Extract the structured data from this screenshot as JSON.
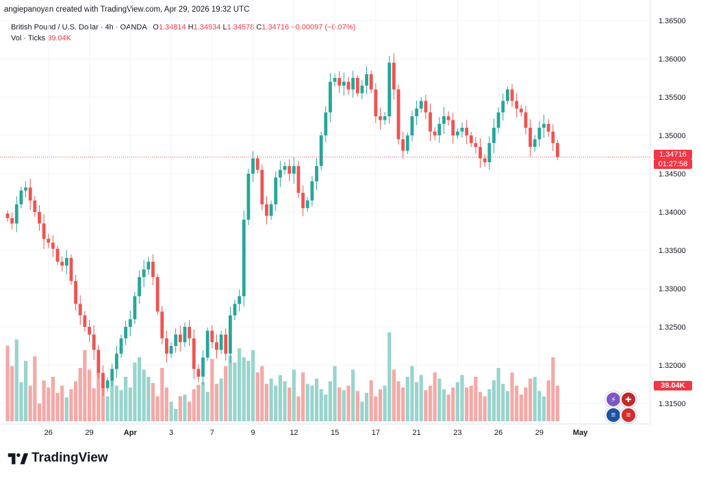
{
  "header": {
    "author_line": "angiepanoyan created with TradingView.com, Apr 29, 2026 19:32 UTC",
    "symbol": "British Pound / U.S. Dollar · 4h · OANDA",
    "open_label": "O",
    "open": "1.34814",
    "high_label": "H",
    "high": "1.34934",
    "low_label": "L",
    "low": "1.34578",
    "close_label": "C",
    "close": "1.34716",
    "change": "−0.00097 (−0.07%)",
    "vol_label": "Vol · Ticks",
    "vol_value": "39.04K"
  },
  "price_scale": {
    "last_price": "1.34716",
    "countdown": "01:27:58",
    "volume_tag": "39.04K"
  },
  "brand": {
    "name": "TradingView"
  },
  "colors": {
    "up": "#26a69a",
    "down": "#ef5350",
    "vol_up": "#98d4cc",
    "vol_down": "#f4a9a7",
    "grid": "#f0f3fa",
    "last_price_line": "#f23645"
  },
  "event_icons": [
    "lightning-icon",
    "uk-flag-icon",
    "us-flag-icon",
    "us-flag-icon"
  ],
  "chart_data": {
    "type": "candlestick",
    "timeframe": "4h",
    "ylim": [
      1.311,
      1.366
    ],
    "y_ticks": [
      "1.31500",
      "1.32000",
      "1.32500",
      "1.33000",
      "1.33500",
      "1.34000",
      "1.34500",
      "1.35000",
      "1.35500",
      "1.36000",
      "1.36500"
    ],
    "x_ticks": [
      {
        "label": "26",
        "index": 9
      },
      {
        "label": "29",
        "index": 18
      },
      {
        "label": "Apr",
        "index": 27
      },
      {
        "label": "3",
        "index": 36
      },
      {
        "label": "7",
        "index": 45
      },
      {
        "label": "9",
        "index": 54
      },
      {
        "label": "12",
        "index": 63
      },
      {
        "label": "15",
        "index": 72
      },
      {
        "label": "17",
        "index": 81
      },
      {
        "label": "21",
        "index": 90
      },
      {
        "label": "23",
        "index": 99
      },
      {
        "label": "26",
        "index": 108
      },
      {
        "label": "29",
        "index": 117
      },
      {
        "label": "May",
        "index": 126
      }
    ],
    "closes": [
      1.3392,
      1.3385,
      1.341,
      1.3428,
      1.3432,
      1.3415,
      1.34,
      1.3385,
      1.3365,
      1.336,
      1.3352,
      1.3335,
      1.333,
      1.334,
      1.331,
      1.328,
      1.3265,
      1.325,
      1.324,
      1.322,
      1.319,
      1.317,
      1.318,
      1.3195,
      1.3215,
      1.3235,
      1.325,
      1.326,
      1.329,
      1.3315,
      1.3325,
      1.3335,
      1.3315,
      1.327,
      1.3235,
      1.3215,
      1.3225,
      1.324,
      1.323,
      1.325,
      1.3235,
      1.3195,
      1.3185,
      1.321,
      1.3245,
      1.323,
      1.322,
      1.324,
      1.3215,
      1.3265,
      1.328,
      1.329,
      1.339,
      1.345,
      1.347,
      1.3455,
      1.341,
      1.3395,
      1.341,
      1.3445,
      1.3455,
      1.346,
      1.345,
      1.346,
      1.3425,
      1.3405,
      1.3415,
      1.344,
      1.346,
      1.35,
      1.353,
      1.357,
      1.3575,
      1.3565,
      1.357,
      1.356,
      1.3575,
      1.3555,
      1.3565,
      1.358,
      1.356,
      1.3525,
      1.352,
      1.3525,
      1.3595,
      1.356,
      1.3495,
      1.348,
      1.35,
      1.3525,
      1.3535,
      1.3545,
      1.353,
      1.3505,
      1.35,
      1.3515,
      1.3525,
      1.352,
      1.35,
      1.3505,
      1.351,
      1.35,
      1.349,
      1.3485,
      1.347,
      1.3465,
      1.349,
      1.351,
      1.353,
      1.3545,
      1.356,
      1.3545,
      1.3535,
      1.353,
      1.351,
      1.3485,
      1.3495,
      1.351,
      1.3515,
      1.3505,
      1.349,
      1.3472
    ],
    "volumes_rel": [
      0.85,
      0.62,
      0.92,
      0.44,
      0.68,
      0.4,
      0.73,
      0.2,
      0.46,
      0.38,
      0.5,
      0.32,
      0.4,
      0.27,
      0.36,
      0.45,
      0.6,
      0.8,
      0.58,
      0.37,
      0.56,
      0.42,
      0.28,
      0.46,
      0.4,
      0.35,
      0.5,
      0.38,
      0.66,
      0.72,
      0.58,
      0.5,
      0.43,
      0.28,
      0.6,
      0.38,
      0.22,
      0.14,
      0.28,
      0.3,
      0.22,
      0.36,
      0.41,
      0.44,
      0.33,
      0.7,
      0.42,
      0.48,
      0.62,
      0.74,
      0.66,
      0.82,
      0.72,
      0.68,
      0.8,
      0.55,
      0.62,
      0.42,
      0.48,
      0.4,
      0.52,
      0.45,
      0.38,
      0.58,
      0.28,
      0.55,
      0.42,
      0.4,
      0.48,
      0.36,
      0.3,
      0.45,
      0.62,
      0.38,
      0.35,
      0.4,
      0.58,
      0.34,
      0.22,
      0.32,
      0.46,
      0.28,
      0.36,
      0.4,
      1.0,
      0.58,
      0.45,
      0.38,
      0.5,
      0.62,
      0.44,
      0.52,
      0.35,
      0.4,
      0.55,
      0.48,
      0.36,
      0.3,
      0.38,
      0.44,
      0.52,
      0.38,
      0.4,
      0.5,
      0.33,
      0.28,
      0.36,
      0.46,
      0.6,
      0.42,
      0.34,
      0.55,
      0.4,
      0.3,
      0.38,
      0.48,
      0.5,
      0.34,
      0.28,
      0.46,
      0.72,
      0.4
    ]
  }
}
